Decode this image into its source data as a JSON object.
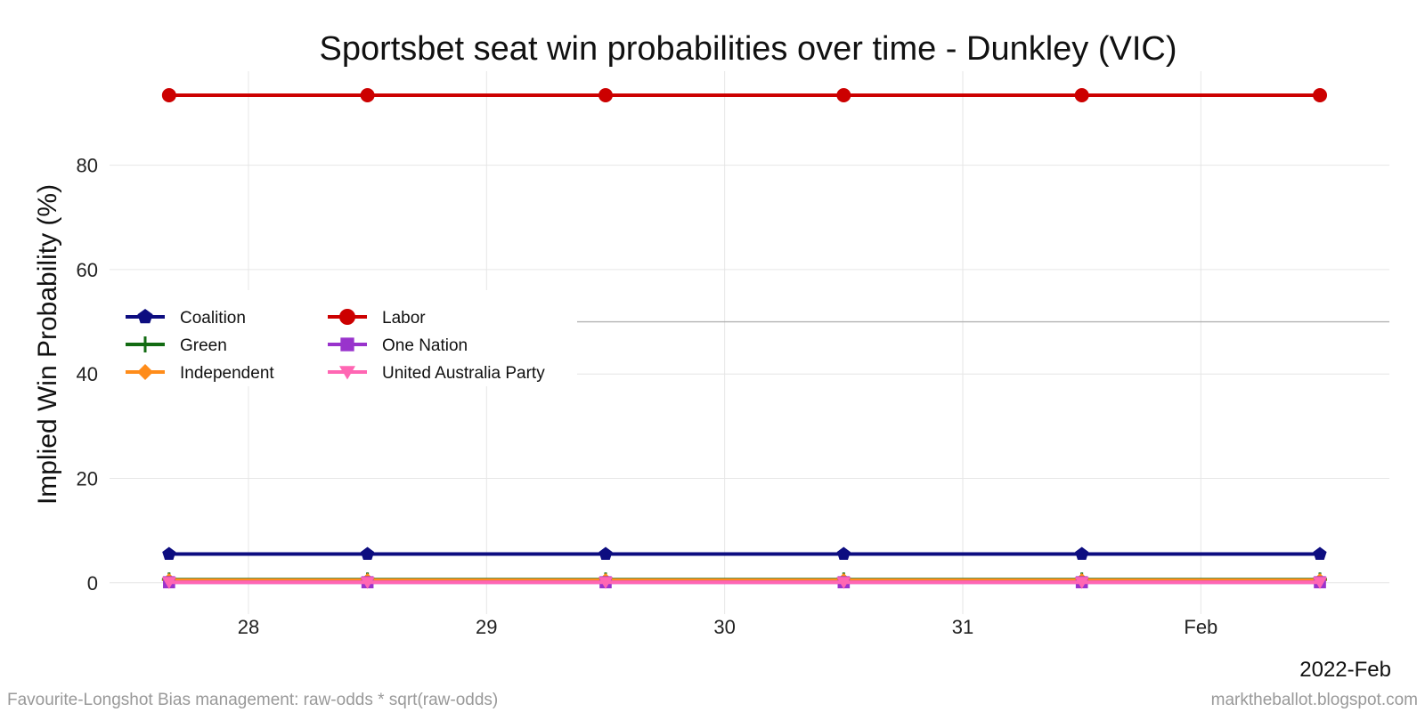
{
  "chart_data": {
    "type": "line",
    "title": "Sportsbet seat win probabilities over time - Dunkley (VIC)",
    "ylabel": "Implied Win Probability (%)",
    "xlabel": "",
    "x_period_label": "2022-Feb",
    "x": [
      "2022-01-27 16:00",
      "2022-01-28 12:00",
      "2022-01-29 12:00",
      "2022-01-30 12:00",
      "2022-01-31 12:00",
      "2022-02-01 12:00"
    ],
    "xlim": [
      "2022-01-27 10:00",
      "2022-02-01 19:00"
    ],
    "ylim": [
      -6,
      98
    ],
    "y_ticks": [
      0,
      20,
      40,
      60,
      80
    ],
    "x_ticks": [
      {
        "date": "2022-01-28 00:00",
        "label": "28"
      },
      {
        "date": "2022-01-29 00:00",
        "label": "29"
      },
      {
        "date": "2022-01-30 00:00",
        "label": "30"
      },
      {
        "date": "2022-01-31 00:00",
        "label": "31"
      },
      {
        "date": "2022-02-01 00:00",
        "label": "Feb"
      }
    ],
    "reference_line_y": 50,
    "grid": true,
    "legend_position": "center-left",
    "series": [
      {
        "name": "Coalition",
        "color": "#0d0d80",
        "marker": "pentagon",
        "values": [
          5.5,
          5.5,
          5.5,
          5.5,
          5.5,
          5.5
        ]
      },
      {
        "name": "Green",
        "color": "#126b12",
        "marker": "plus",
        "values": [
          0.6,
          0.6,
          0.6,
          0.6,
          0.6,
          0.6
        ]
      },
      {
        "name": "Independent",
        "color": "#ff8c1a",
        "marker": "diamond",
        "values": [
          0.5,
          0.5,
          0.5,
          0.5,
          0.5,
          0.5
        ]
      },
      {
        "name": "Labor",
        "color": "#cc0000",
        "marker": "circle",
        "values": [
          93.4,
          93.4,
          93.4,
          93.4,
          93.4,
          93.4
        ]
      },
      {
        "name": "One Nation",
        "color": "#9933cc",
        "marker": "square",
        "values": [
          0.1,
          0.1,
          0.1,
          0.1,
          0.1,
          0.1
        ]
      },
      {
        "name": "United Australia Party",
        "color": "#ff66b3",
        "marker": "triangle-down",
        "values": [
          0.1,
          0.1,
          0.1,
          0.1,
          0.1,
          0.1
        ]
      }
    ]
  },
  "footer": {
    "left": "Favourite-Longshot Bias management: raw-odds * sqrt(raw-odds)",
    "right": "marktheballot.blogspot.com"
  }
}
